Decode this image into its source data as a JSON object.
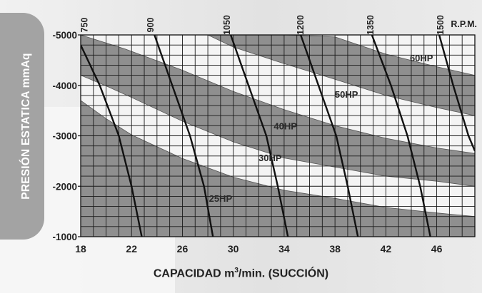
{
  "chart_data": {
    "type": "line",
    "xlabel_pre": "CAPACIDAD m",
    "xlabel_sup": "3",
    "xlabel_post": "/min. (SUCCIÓN)",
    "ylabel": "PRESIÓN ESTATICA mmAq",
    "xlim": [
      18,
      49
    ],
    "ylim": [
      -1000,
      -5000
    ],
    "x_ticks": [
      18,
      22,
      26,
      30,
      34,
      38,
      42,
      46
    ],
    "y_ticks": [
      -5000,
      -4000,
      -3000,
      -2000,
      -1000
    ],
    "x_tick_labels": [
      "18",
      "22",
      "26",
      "30",
      "34",
      "38",
      "42",
      "46"
    ],
    "y_tick_labels": [
      "-5000",
      "-4000",
      "-3000",
      "-2000",
      "-1000"
    ],
    "grid": true,
    "rpm_unit": "R.P.M.",
    "rpm_curves": [
      {
        "name": "750",
        "label_x": 18.3,
        "points": [
          [
            18.0,
            -4800
          ],
          [
            19.5,
            -4000
          ],
          [
            21.0,
            -3000
          ],
          [
            22.0,
            -2000
          ],
          [
            22.8,
            -1000
          ]
        ]
      },
      {
        "name": "900",
        "label_x": 23.5,
        "points": [
          [
            23.8,
            -5000
          ],
          [
            25.2,
            -4000
          ],
          [
            26.6,
            -3000
          ],
          [
            27.7,
            -2000
          ],
          [
            28.4,
            -1000
          ]
        ]
      },
      {
        "name": "1050",
        "label_x": 29.5,
        "points": [
          [
            29.8,
            -5000
          ],
          [
            31.2,
            -4000
          ],
          [
            32.6,
            -3000
          ],
          [
            33.5,
            -2000
          ],
          [
            34.3,
            -1000
          ]
        ]
      },
      {
        "name": "1200",
        "label_x": 35.3,
        "points": [
          [
            35.3,
            -5000
          ],
          [
            36.7,
            -4000
          ],
          [
            38.1,
            -3000
          ],
          [
            39.0,
            -2000
          ],
          [
            39.8,
            -1000
          ]
        ]
      },
      {
        "name": "1350",
        "label_x": 40.8,
        "points": [
          [
            40.9,
            -5000
          ],
          [
            42.4,
            -4000
          ],
          [
            43.7,
            -3000
          ],
          [
            44.7,
            -2000
          ],
          [
            45.5,
            -1000
          ]
        ]
      },
      {
        "name": "1500",
        "label_x": 46.3,
        "points": [
          [
            46.2,
            -5000
          ],
          [
            47.3,
            -4000
          ],
          [
            48.5,
            -3000
          ],
          [
            49.0,
            -2700
          ]
        ]
      }
    ],
    "hp_bands": [
      {
        "name": "25HP",
        "label_x": 27.4,
        "label_y": -2200,
        "upper": [
          [
            18.0,
            -3700
          ],
          [
            20.0,
            -3340
          ],
          [
            22.0,
            -3020
          ],
          [
            26.0,
            -2550
          ],
          [
            30.0,
            -2180
          ],
          [
            34.0,
            -1920
          ],
          [
            38.0,
            -1760
          ],
          [
            42.0,
            -1580
          ],
          [
            46.0,
            -1470
          ],
          [
            49.0,
            -1400
          ]
        ],
        "lower": [
          [
            49.0,
            -1000
          ],
          [
            18.0,
            -1000
          ]
        ]
      },
      {
        "name": "40HP",
        "label_x": 31.5,
        "label_y": -3200,
        "upper": [
          [
            18.0,
            -5000
          ],
          [
            21.5,
            -4720
          ],
          [
            26.0,
            -4300
          ],
          [
            30.0,
            -3880
          ],
          [
            34.0,
            -3520
          ],
          [
            38.0,
            -3200
          ],
          [
            42.0,
            -2950
          ],
          [
            46.0,
            -2760
          ],
          [
            49.0,
            -2650
          ]
        ],
        "lower": [
          [
            49.0,
            -2000
          ],
          [
            46.0,
            -2100
          ],
          [
            42.0,
            -2200
          ],
          [
            38.0,
            -2380
          ],
          [
            34.0,
            -2560
          ],
          [
            30.0,
            -2880
          ],
          [
            26.0,
            -3290
          ],
          [
            22.0,
            -3760
          ],
          [
            20.0,
            -3990
          ],
          [
            18.0,
            -4200
          ]
        ]
      },
      {
        "name": "60HP",
        "label_x": 37.4,
        "label_y": -4500,
        "upper": [
          [
            30.0,
            -5000
          ],
          [
            34.0,
            -5000
          ],
          [
            38.0,
            -4960
          ],
          [
            42.0,
            -4620
          ],
          [
            46.0,
            -4370
          ],
          [
            49.0,
            -4200
          ]
        ],
        "lower": [
          [
            49.0,
            -3400
          ],
          [
            46.0,
            -3560
          ],
          [
            42.0,
            -3800
          ],
          [
            38.0,
            -4120
          ],
          [
            34.0,
            -4430
          ],
          [
            30.0,
            -4760
          ],
          [
            28.0,
            -5000
          ]
        ]
      }
    ],
    "hp_labels": [
      {
        "name": "60HP",
        "x": 44.8,
        "y": -4550
      },
      {
        "name": "50HP",
        "x": 38.9,
        "y": -3830
      },
      {
        "name": "40HP",
        "x": 34.1,
        "y": -3200
      },
      {
        "name": "30HP",
        "x": 32.9,
        "y": -2570
      },
      {
        "name": "25HP",
        "x": 29.0,
        "y": -1760
      }
    ]
  },
  "colors": {
    "band_fill": "#8f8f8f",
    "plot_bg": "#f4f4f4",
    "grid": "#1a1a1a",
    "curve": "#111111"
  }
}
